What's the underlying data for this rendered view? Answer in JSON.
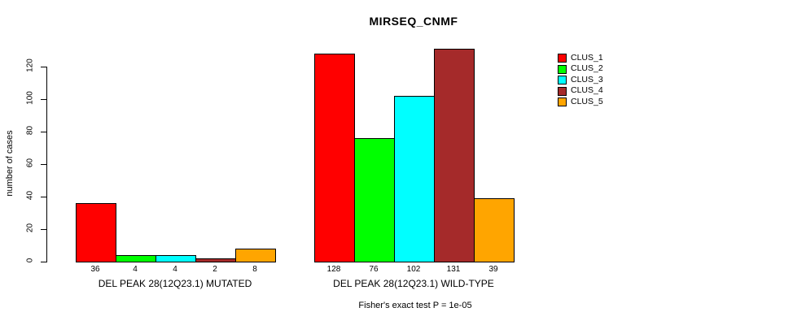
{
  "title": "MIRSEQ_CNMF",
  "y_axis": {
    "label": "number of cases",
    "ticks": [
      0,
      20,
      40,
      60,
      80,
      100,
      120
    ]
  },
  "footer": "Fisher's exact test P = 1e-05",
  "legend": {
    "items": [
      {
        "label": "CLUS_1",
        "color": "#FF0000"
      },
      {
        "label": "CLUS_2",
        "color": "#00FF00"
      },
      {
        "label": "CLUS_3",
        "color": "#00FFFF"
      },
      {
        "label": "CLUS_4",
        "color": "#A52A2A"
      },
      {
        "label": "CLUS_5",
        "color": "#FFA500"
      }
    ]
  },
  "chart_data": {
    "type": "bar",
    "title": "MIRSEQ_CNMF",
    "xlabel": "",
    "ylabel": "number of cases",
    "ylim": [
      0,
      135
    ],
    "y_ticks": [
      0,
      20,
      40,
      60,
      80,
      100,
      120
    ],
    "grid": false,
    "legend_position": "right",
    "categories": [
      "DEL PEAK 28(12Q23.1) MUTATED",
      "DEL PEAK 28(12Q23.1) WILD-TYPE"
    ],
    "series": [
      {
        "name": "CLUS_1",
        "color": "#FF0000",
        "values": [
          36,
          128
        ]
      },
      {
        "name": "CLUS_2",
        "color": "#00FF00",
        "values": [
          4,
          76
        ]
      },
      {
        "name": "CLUS_3",
        "color": "#00FFFF",
        "values": [
          4,
          102
        ]
      },
      {
        "name": "CLUS_4",
        "color": "#A52A2A",
        "values": [
          2,
          131
        ]
      },
      {
        "name": "CLUS_5",
        "color": "#FFA500",
        "values": [
          8,
          39
        ]
      }
    ],
    "bar_value_labels": [
      [
        36,
        4,
        4,
        2,
        8
      ],
      [
        128,
        76,
        102,
        131,
        39
      ]
    ],
    "annotation": "Fisher's exact test P = 1e-05"
  }
}
